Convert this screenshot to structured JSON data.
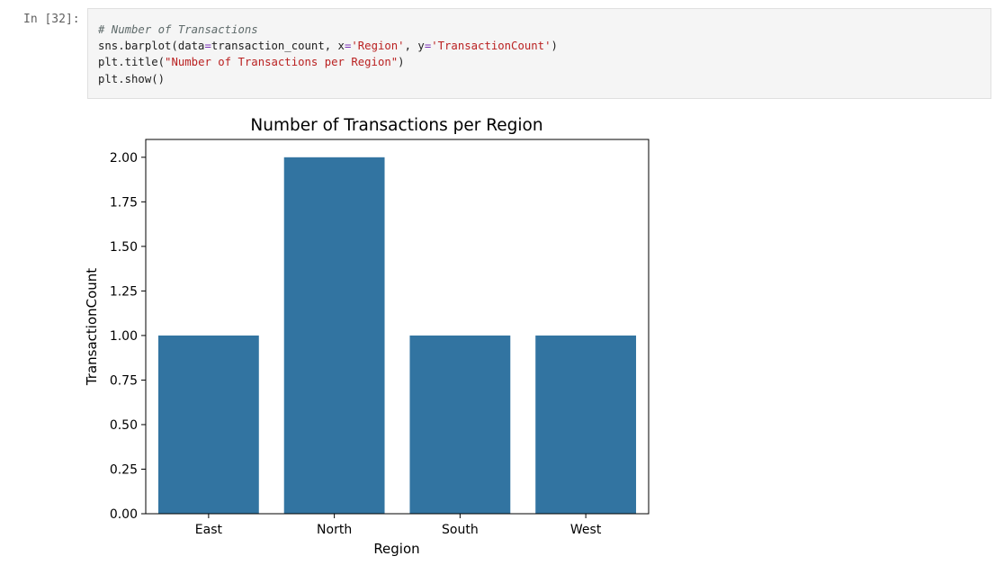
{
  "cell": {
    "prompt": "In [32]:",
    "code": {
      "comment": "# Number of Transactions",
      "line1_pre": "sns.barplot(data",
      "eq1": "=",
      "line1_mid1": "transaction_count, x",
      "eq2": "=",
      "str_x": "'Region'",
      "line1_mid2": ", y",
      "eq3": "=",
      "str_y": "'TransactionCount'",
      "line1_end": ")",
      "line2_pre": "plt.title(",
      "str_title": "\"Number of Transactions per Region\"",
      "line2_end": ")",
      "line3": "plt.show()"
    }
  },
  "chart_data": {
    "type": "bar",
    "title": "Number of Transactions per Region",
    "xlabel": "Region",
    "ylabel": "TransactionCount",
    "categories": [
      "East",
      "North",
      "South",
      "West"
    ],
    "values": [
      1,
      2,
      1,
      1
    ],
    "ylim": [
      0,
      2.1
    ],
    "yticks": [
      "0.00",
      "0.25",
      "0.50",
      "0.75",
      "1.00",
      "1.25",
      "1.50",
      "1.75",
      "2.00"
    ],
    "bar_color": "#3274a1",
    "grid": false
  }
}
